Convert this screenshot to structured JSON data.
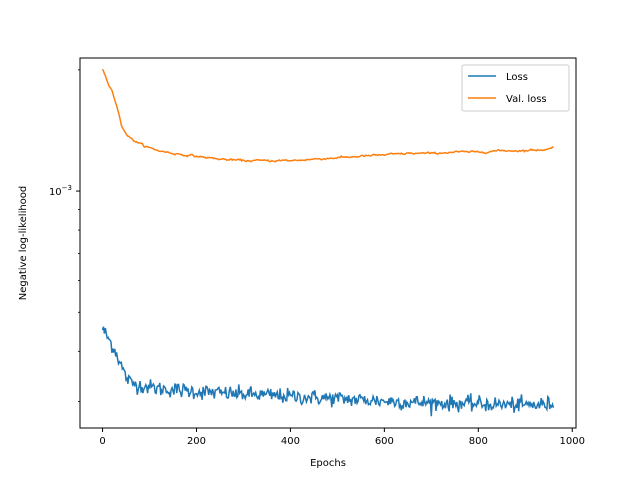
{
  "chart_data": {
    "type": "line",
    "xlabel": "Epochs",
    "ylabel": "Negative log-likelihood",
    "yscale": "log",
    "xlim": [
      -48,
      1008
    ],
    "ylim": [
      0.000258,
      0.00214
    ],
    "xticks": [
      0,
      200,
      400,
      600,
      800,
      1000
    ],
    "xtick_labels": [
      "0",
      "200",
      "400",
      "600",
      "800",
      "1000"
    ],
    "yticks": [
      0.001
    ],
    "ytick_labels": [
      "10−3"
    ],
    "ytick_base": "10",
    "ytick_exponent": "−3",
    "grid": false,
    "legend_position": "top-right",
    "series": [
      {
        "name": "Loss",
        "color": "#1f77b4",
        "x": [
          0,
          10,
          20,
          30,
          40,
          50,
          60,
          80,
          100,
          120,
          150,
          200,
          250,
          300,
          350,
          400,
          450,
          500,
          550,
          600,
          650,
          700,
          750,
          800,
          850,
          900,
          950,
          960
        ],
        "y": [
          0.000455,
          0.000435,
          0.000415,
          0.000395,
          0.000368,
          0.000345,
          0.000334,
          0.000329,
          0.000326,
          0.000323,
          0.000321,
          0.000318,
          0.000315,
          0.000313,
          0.000311,
          0.000309,
          0.000307,
          0.000305,
          0.000303,
          0.000301,
          0.000299,
          0.000298,
          0.000297,
          0.000296,
          0.000295,
          0.000294,
          0.000295,
          0.000299
        ],
        "noise": 0.022
      },
      {
        "name": "Val. loss",
        "color": "#ff7f0e",
        "x": [
          0,
          10,
          20,
          30,
          40,
          50,
          60,
          80,
          100,
          120,
          150,
          200,
          250,
          300,
          350,
          400,
          450,
          500,
          550,
          600,
          650,
          700,
          750,
          800,
          850,
          900,
          950,
          960
        ],
        "y": [
          0.00201,
          0.00188,
          0.00178,
          0.00163,
          0.00146,
          0.00139,
          0.00135,
          0.00131,
          0.00128,
          0.00126,
          0.00124,
          0.00122,
          0.0012,
          0.00119,
          0.00119,
          0.00119,
          0.0012,
          0.00121,
          0.00122,
          0.00123,
          0.00124,
          0.00124,
          0.00125,
          0.00125,
          0.00126,
          0.00126,
          0.00127,
          0.00129
        ],
        "noise": 0.006
      }
    ]
  }
}
